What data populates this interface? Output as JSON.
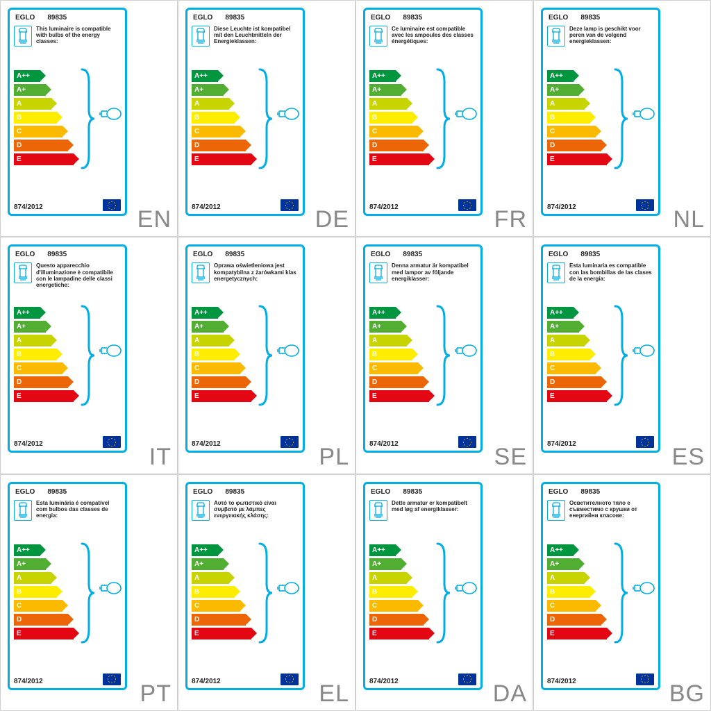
{
  "brand": "EGLO",
  "model": "89835",
  "regulation": "874/2012",
  "border_color": "#00aee6",
  "lang_color": "#888888",
  "cell_border_color": "#d0d0d0",
  "eu_flag_bg": "#003399",
  "eu_flag_star": "#ffcc00",
  "energy_classes": [
    {
      "label": "A++",
      "color": "#009640",
      "width": 38
    },
    {
      "label": "A+",
      "color": "#52ae32",
      "width": 46
    },
    {
      "label": "A",
      "color": "#c8d400",
      "width": 54
    },
    {
      "label": "B",
      "color": "#ffed00",
      "width": 62
    },
    {
      "label": "C",
      "color": "#fbba00",
      "width": 70
    },
    {
      "label": "D",
      "color": "#ec6608",
      "width": 78
    },
    {
      "label": "E",
      "color": "#e30613",
      "width": 86
    }
  ],
  "cards": [
    {
      "lang": "EN",
      "text": "This luminaire is compatible with bulbs of the energy classes:"
    },
    {
      "lang": "DE",
      "text": "Diese Leuchte ist kompatibel mit den Leuchtmitteln der Energieklassen:"
    },
    {
      "lang": "FR",
      "text": "Ce luminaire est compatible avec les ampoules des classes énergétiques:"
    },
    {
      "lang": "NL",
      "text": "Deze lamp is geschikt voor peren van de volgend energieklassen:"
    },
    {
      "lang": "IT",
      "text": "Questo apparecchio d'illuminazione è compatibile con le lampadine delle classi energetiche:"
    },
    {
      "lang": "PL",
      "text": "Oprawa oświetleniowa jest kompatybilna z żarówkami klas energetycznych:"
    },
    {
      "lang": "SE",
      "text": "Denna armatur är kompatibel med lampor av följande energiklasser:"
    },
    {
      "lang": "ES",
      "text": "Esta luminaria es compatible con las bombillas de las clases de la energía:"
    },
    {
      "lang": "PT",
      "text": "Esta luminária é compatível com bulbos das classes de energia:"
    },
    {
      "lang": "EL",
      "text": "Αυτό το φωτιστικό είναι συμβατό με λάμπες ενεργειακής κλάσης:"
    },
    {
      "lang": "DA",
      "text": "Dette armatur er kompatibelt med løg af energiklasser:"
    },
    {
      "lang": "BG",
      "text": "Осветителното тяло е съвместимо с крушки от енергийни класове:"
    }
  ]
}
